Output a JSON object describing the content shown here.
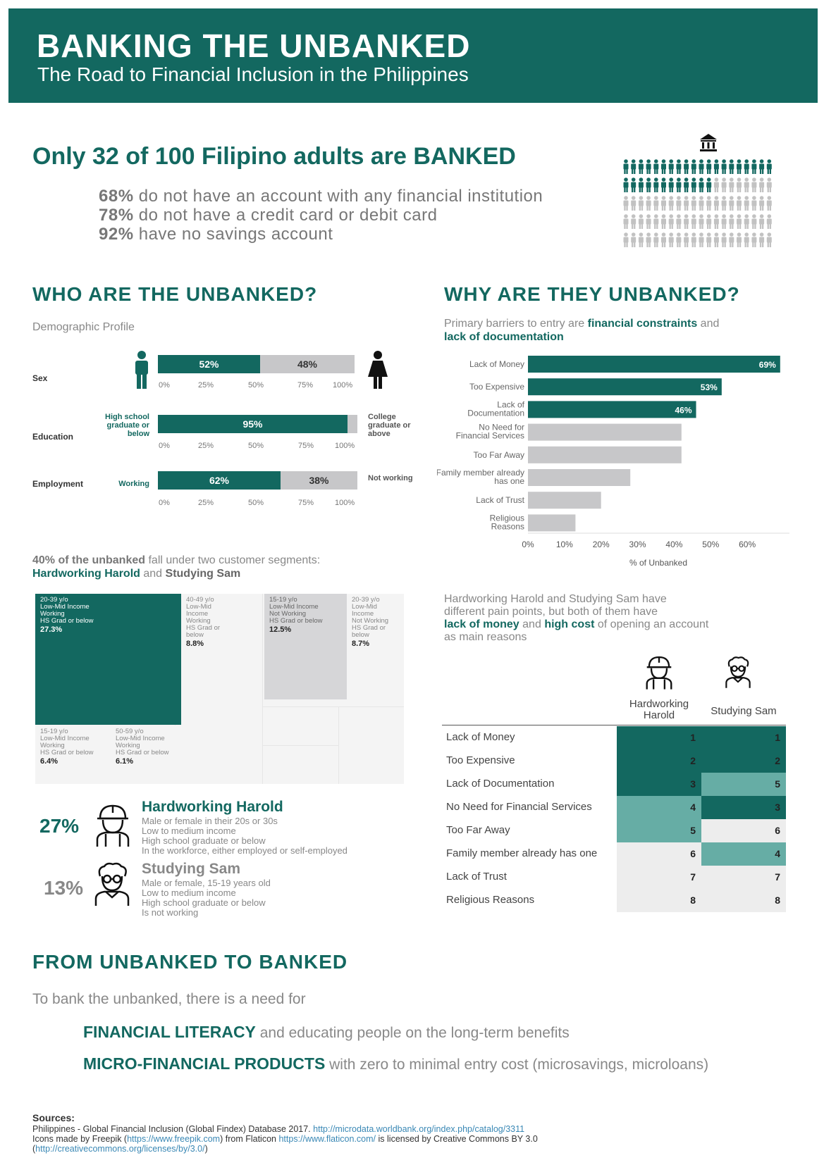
{
  "header": {
    "title": "BANKING THE UNBANKED",
    "subtitle": "The Road to Financial Inclusion in the Philippines"
  },
  "overview": {
    "headline": "Only 32 of 100 Filipino adults are BANKED",
    "stats": [
      {
        "value": "68%",
        "text": "do not have an account with any financial institution"
      },
      {
        "value": "78%",
        "text": "do not have a credit card or debit card"
      },
      {
        "value": "92%",
        "text": "have no savings account"
      }
    ],
    "pictogram": {
      "total": 100,
      "banked": 32,
      "icon": "person-icon",
      "top_icon": "bank-icon"
    }
  },
  "who": {
    "heading": "WHO ARE THE UNBANKED?",
    "sub": "Demographic Profile",
    "ticks": [
      "0%",
      "25%",
      "50%",
      "75%",
      "100%"
    ],
    "rows": [
      {
        "name": "Sex",
        "left_label": "",
        "right_label": "",
        "left_icon": "male-icon",
        "right_icon": "female-icon",
        "left_value": 52,
        "left_text": "52%",
        "right_text": "48%"
      },
      {
        "name": "Education",
        "left_label": "High school graduate or below",
        "right_label": "College graduate or above",
        "left_value": 95,
        "left_text": "95%",
        "right_text": ""
      },
      {
        "name": "Employment",
        "left_label": "Working",
        "right_label": "Not working",
        "left_value": 62,
        "left_text": "62%",
        "right_text": "38%"
      }
    ]
  },
  "why": {
    "heading": "WHY ARE THEY UNBANKED?",
    "intro_a": "Primary barriers to entry are",
    "intro_b": "financial constraints",
    "intro_c": "and",
    "intro_d": "lack of documentation"
  },
  "chart_data": [
    {
      "type": "bar",
      "orientation": "horizontal",
      "categories": [
        "Lack of Money",
        "Too Expensive",
        "Lack of Documentation",
        "No Need for Financial Services",
        "Too Far Away",
        "Family member already has one",
        "Lack of Trust",
        "Religious Reasons"
      ],
      "values": [
        69,
        53,
        46,
        42,
        42,
        28,
        20,
        13
      ],
      "data_labels": [
        "69%",
        "53%",
        "46%",
        "",
        "",
        "",
        "",
        ""
      ],
      "highlight": [
        true,
        true,
        true,
        false,
        false,
        false,
        false,
        false
      ],
      "xlabel": "% of Unbanked",
      "xticks": [
        "0%",
        "10%",
        "20%",
        "30%",
        "40%",
        "50%",
        "60%"
      ],
      "xlim": [
        0,
        70
      ],
      "colors": {
        "highlight": "#136860",
        "other": "#c7c7c9"
      }
    },
    {
      "type": "heatmap",
      "title": "Hardworking Harold and Studying Sam have different pain points, but both of them have lack of money and high cost of opening an account as main reasons",
      "rows": [
        "Lack of Money",
        "Too Expensive",
        "Lack of Documentation",
        "No Need for Financial Services",
        "Too Far Away",
        "Family member already has one",
        "Lack of Trust",
        "Religious Reasons"
      ],
      "columns": [
        "Hardworking Harold",
        "Studying Sam"
      ],
      "values": [
        [
          1,
          1
        ],
        [
          2,
          2
        ],
        [
          3,
          5
        ],
        [
          4,
          3
        ],
        [
          5,
          6
        ],
        [
          6,
          4
        ],
        [
          7,
          7
        ],
        [
          8,
          8
        ]
      ],
      "colors": {
        "top3": "#136860",
        "mid": "#66ada5",
        "rest": "#ededed"
      }
    },
    {
      "type": "treemap",
      "segments": [
        {
          "label_lines": [
            "20-39 y/o",
            "Low-Mid Income",
            "Working",
            "HS Grad or below"
          ],
          "pct": "27.3%",
          "value": 27.3
        },
        {
          "label_lines": [
            "40-49 y/o",
            "Low-Mid",
            "Income",
            "Working",
            "HS Grad or",
            "below"
          ],
          "pct": "8.8%",
          "value": 8.8
        },
        {
          "label_lines": [
            "15-19 y/o",
            "Low-Mid Income",
            "Working",
            "HS Grad or below"
          ],
          "pct": "6.4%",
          "value": 6.4
        },
        {
          "label_lines": [
            "50-59 y/o",
            "Low-Mid Income",
            "Working",
            "HS Grad or below"
          ],
          "pct": "6.1%",
          "value": 6.1
        },
        {
          "label_lines": [
            "15-19 y/o",
            "Low-Mid Income",
            "Not Working",
            "HS Grad or below"
          ],
          "pct": "12.5%",
          "value": 12.5
        },
        {
          "label_lines": [
            "20-39 y/o",
            "Low-Mid",
            "Income",
            "Not Working",
            "HS Grad or",
            "below"
          ],
          "pct": "8.7%",
          "value": 8.7
        }
      ]
    }
  ],
  "segments": {
    "intro_a": "40% of the unbanked",
    "intro_b": "fall under two customer segments:",
    "intro_c": "Hardworking Harold",
    "intro_d": "and",
    "intro_e": "Studying Sam",
    "personas": [
      {
        "pct": "27%",
        "name": "Hardworking Harold",
        "icon": "worker-icon",
        "desc": [
          "Male or female in their 20s or 30s",
          "Low to medium income",
          "High school graduate or below",
          "In the workforce, either employed or self-employed"
        ]
      },
      {
        "pct": "13%",
        "name": "Studying Sam",
        "icon": "student-icon",
        "desc": [
          "Male or female, 15-19 years old",
          "Low to medium income",
          "High school graduate or below",
          "Is not working"
        ]
      }
    ]
  },
  "pain": {
    "text_a": "Hardworking Harold and Studying Sam have",
    "text_b": "different pain points, but both of them have",
    "text_c": "lack of money",
    "text_d": "and",
    "text_e": "high cost",
    "text_f": "of opening an account",
    "text_g": "as main reasons",
    "col1": "Hardworking Harold",
    "col2": "Studying Sam"
  },
  "banked": {
    "heading": "FROM UNBANKED TO BANKED",
    "intro": "To bank the unbanked, there is a need for",
    "items": [
      {
        "strong": "FINANCIAL LITERACY",
        "rest": "and educating people on the long-term benefits"
      },
      {
        "strong": "MICRO-FINANCIAL PRODUCTS",
        "rest": "with zero to minimal entry cost (microsavings, microloans)"
      }
    ]
  },
  "sources": {
    "title": "Sources:",
    "line1": "Philippines - Global Financial Inclusion (Global Findex) Database 2017.",
    "link1": "http://microdata.worldbank.org/index.php/catalog/3311",
    "line2a": "Icons made by Freepik (",
    "link2": "https://www.freepik.com",
    "line2b": ") from Flaticon",
    "link3": "https://www.flaticon.com/",
    "line2c": "is licensed by Creative Commons BY 3.0",
    "line3a": "(",
    "link4": "http://creativecommons.org/licenses/by/3.0/",
    "line3b": ")"
  }
}
